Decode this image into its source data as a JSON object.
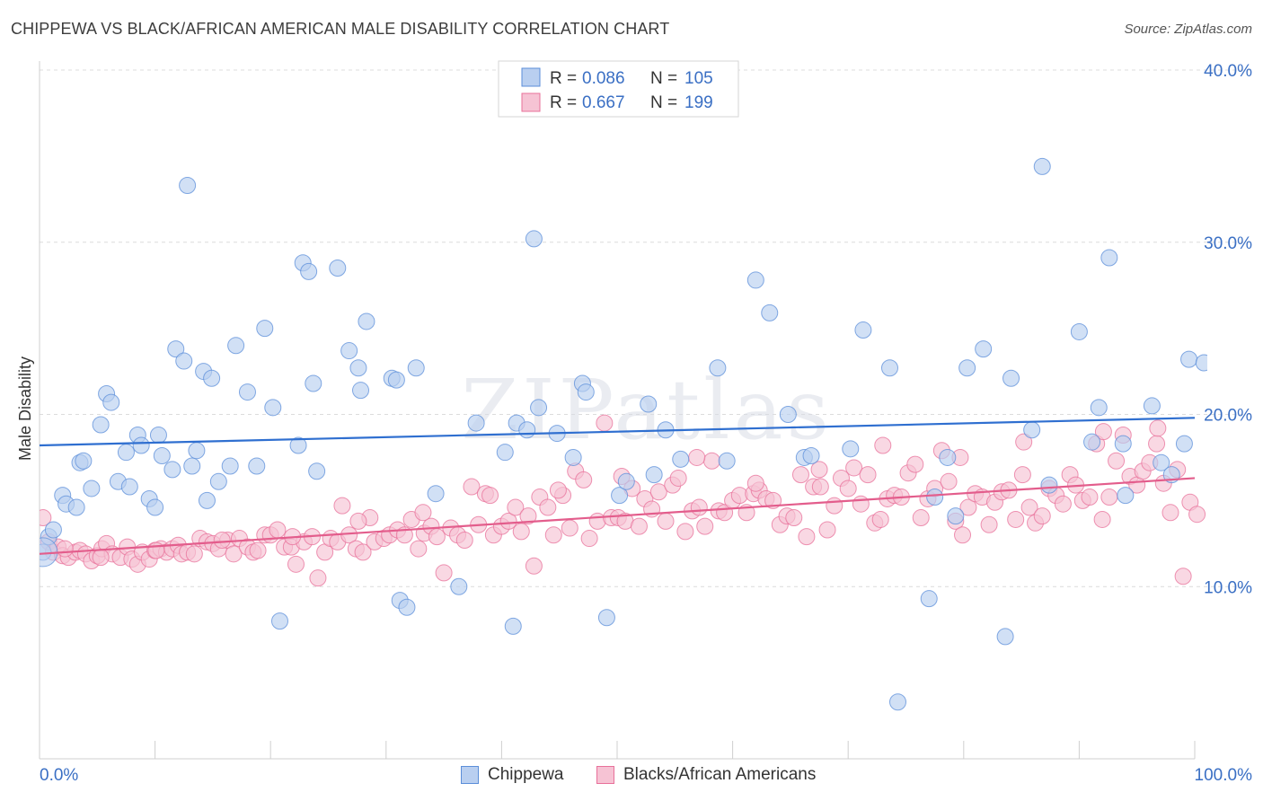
{
  "title": "CHIPPEWA VS BLACK/AFRICAN AMERICAN MALE DISABILITY CORRELATION CHART",
  "source": "Source: ZipAtlas.com",
  "watermark": "ZIPatlas",
  "x_min_label": "0.0%",
  "x_max_label": "100.0%",
  "legend_top": {
    "row1": {
      "r_label": "R =",
      "r_value": "0.086",
      "n_label": "N =",
      "n_value": "105"
    },
    "row2": {
      "r_label": "R =",
      "r_value": "0.667",
      "n_label": "N =",
      "n_value": "199"
    }
  },
  "legend_bottom": {
    "series1": "Chippewa",
    "series2": "Blacks/African Americans"
  },
  "colors": {
    "blue": "#5b8ed9",
    "blue_fill": "#b9cff0",
    "pink": "#e8709a",
    "pink_fill": "#f6c3d4",
    "axis_label": "#3a6fc4"
  },
  "chart_data": {
    "type": "scatter",
    "title": "CHIPPEWA VS BLACK/AFRICAN AMERICAN MALE DISABILITY CORRELATION CHART",
    "xlabel": "",
    "ylabel": "Male Disability",
    "xlim": [
      0,
      100
    ],
    "ylim": [
      0,
      40
    ],
    "y_ticks": [
      10,
      20,
      30,
      40
    ],
    "y_tick_labels": [
      "10.0%",
      "20.0%",
      "30.0%",
      "40.0%"
    ],
    "grid": true,
    "legend": "top-center",
    "series": [
      {
        "name": "Chippewa",
        "R": 0.086,
        "N": 105,
        "trend": [
          [
            0,
            18.2
          ],
          [
            100,
            19.8
          ]
        ],
        "points": [
          [
            0.3,
            12.0
          ],
          [
            0.8,
            12.9
          ],
          [
            1.2,
            13.3
          ],
          [
            2.0,
            15.3
          ],
          [
            2.3,
            14.8
          ],
          [
            3.2,
            14.6
          ],
          [
            3.5,
            17.2
          ],
          [
            3.8,
            17.3
          ],
          [
            4.5,
            15.7
          ],
          [
            5.3,
            19.4
          ],
          [
            5.8,
            21.2
          ],
          [
            6.2,
            20.7
          ],
          [
            6.8,
            16.1
          ],
          [
            7.5,
            17.8
          ],
          [
            7.8,
            15.8
          ],
          [
            8.5,
            18.8
          ],
          [
            8.8,
            18.2
          ],
          [
            9.5,
            15.1
          ],
          [
            10.0,
            14.6
          ],
          [
            10.3,
            18.8
          ],
          [
            10.6,
            17.6
          ],
          [
            11.5,
            16.8
          ],
          [
            11.8,
            23.8
          ],
          [
            12.5,
            23.1
          ],
          [
            12.8,
            33.3
          ],
          [
            13.2,
            17.0
          ],
          [
            13.6,
            17.9
          ],
          [
            14.2,
            22.5
          ],
          [
            14.5,
            15.0
          ],
          [
            14.9,
            22.1
          ],
          [
            15.5,
            16.1
          ],
          [
            16.5,
            17.0
          ],
          [
            17.0,
            24.0
          ],
          [
            18.0,
            21.3
          ],
          [
            18.8,
            17.0
          ],
          [
            19.5,
            25.0
          ],
          [
            20.2,
            20.4
          ],
          [
            20.8,
            8.0
          ],
          [
            22.4,
            18.2
          ],
          [
            22.8,
            28.8
          ],
          [
            23.3,
            28.3
          ],
          [
            23.7,
            21.8
          ],
          [
            24.0,
            16.7
          ],
          [
            25.8,
            28.5
          ],
          [
            26.8,
            23.7
          ],
          [
            27.6,
            22.7
          ],
          [
            27.8,
            21.4
          ],
          [
            28.3,
            25.4
          ],
          [
            30.5,
            22.1
          ],
          [
            30.9,
            22.0
          ],
          [
            31.2,
            9.2
          ],
          [
            31.8,
            8.8
          ],
          [
            32.6,
            22.7
          ],
          [
            34.3,
            15.4
          ],
          [
            36.3,
            10.0
          ],
          [
            37.8,
            19.5
          ],
          [
            40.3,
            17.8
          ],
          [
            41.0,
            7.7
          ],
          [
            41.3,
            19.5
          ],
          [
            42.2,
            19.1
          ],
          [
            42.8,
            30.2
          ],
          [
            43.2,
            20.4
          ],
          [
            44.8,
            18.9
          ],
          [
            46.2,
            17.5
          ],
          [
            47.0,
            21.8
          ],
          [
            47.3,
            21.3
          ],
          [
            49.1,
            8.2
          ],
          [
            50.2,
            15.3
          ],
          [
            50.8,
            16.1
          ],
          [
            52.7,
            20.6
          ],
          [
            53.2,
            16.5
          ],
          [
            54.2,
            19.1
          ],
          [
            55.5,
            17.4
          ],
          [
            58.7,
            22.7
          ],
          [
            59.5,
            17.3
          ],
          [
            62.0,
            27.8
          ],
          [
            63.2,
            25.9
          ],
          [
            64.8,
            20.0
          ],
          [
            66.2,
            17.5
          ],
          [
            66.8,
            17.6
          ],
          [
            70.2,
            18.0
          ],
          [
            71.3,
            24.9
          ],
          [
            73.6,
            22.7
          ],
          [
            74.3,
            3.3
          ],
          [
            77.0,
            9.3
          ],
          [
            77.5,
            15.2
          ],
          [
            78.6,
            17.5
          ],
          [
            79.3,
            14.1
          ],
          [
            80.3,
            22.7
          ],
          [
            81.7,
            23.8
          ],
          [
            83.6,
            7.1
          ],
          [
            84.1,
            22.1
          ],
          [
            85.9,
            19.1
          ],
          [
            86.8,
            34.4
          ],
          [
            87.4,
            15.9
          ],
          [
            90.0,
            24.8
          ],
          [
            91.1,
            18.4
          ],
          [
            91.7,
            20.4
          ],
          [
            92.6,
            29.1
          ],
          [
            93.8,
            18.3
          ],
          [
            94.0,
            15.3
          ],
          [
            96.3,
            20.5
          ],
          [
            97.1,
            17.2
          ],
          [
            98.0,
            16.5
          ],
          [
            99.1,
            18.3
          ],
          [
            99.5,
            23.2
          ],
          [
            100.8,
            23.0
          ]
        ]
      },
      {
        "name": "Blacks/African Americans",
        "R": 0.667,
        "N": 199,
        "trend": [
          [
            0,
            11.9
          ],
          [
            100,
            16.3
          ]
        ],
        "points": [
          [
            0.3,
            14.0
          ],
          [
            0.8,
            12.6
          ],
          [
            1.2,
            12.0
          ],
          [
            1.6,
            12.3
          ],
          [
            2.0,
            11.8
          ],
          [
            2.5,
            11.7
          ],
          [
            3.1,
            12.0
          ],
          [
            3.5,
            12.1
          ],
          [
            4.0,
            11.9
          ],
          [
            4.5,
            11.5
          ],
          [
            5.0,
            11.8
          ],
          [
            5.4,
            12.2
          ],
          [
            5.8,
            12.5
          ],
          [
            6.3,
            11.9
          ],
          [
            7.0,
            11.7
          ],
          [
            7.6,
            12.3
          ],
          [
            8.0,
            11.6
          ],
          [
            8.5,
            11.3
          ],
          [
            8.9,
            12.0
          ],
          [
            9.5,
            11.6
          ],
          [
            10.0,
            12.1
          ],
          [
            10.5,
            12.2
          ],
          [
            11.0,
            12.0
          ],
          [
            11.5,
            12.2
          ],
          [
            12.0,
            12.4
          ],
          [
            12.3,
            11.9
          ],
          [
            12.8,
            12.0
          ],
          [
            13.4,
            11.9
          ],
          [
            13.9,
            12.8
          ],
          [
            14.5,
            12.6
          ],
          [
            15.0,
            12.5
          ],
          [
            15.5,
            12.2
          ],
          [
            16.3,
            12.7
          ],
          [
            16.8,
            11.9
          ],
          [
            17.3,
            12.8
          ],
          [
            18.0,
            12.3
          ],
          [
            18.5,
            12.0
          ],
          [
            18.9,
            12.1
          ],
          [
            19.5,
            13.0
          ],
          [
            20.0,
            13.0
          ],
          [
            20.6,
            13.3
          ],
          [
            21.2,
            12.3
          ],
          [
            21.8,
            12.3
          ],
          [
            22.2,
            11.3
          ],
          [
            22.9,
            12.6
          ],
          [
            23.6,
            12.9
          ],
          [
            24.1,
            10.5
          ],
          [
            24.7,
            12.0
          ],
          [
            25.2,
            12.8
          ],
          [
            25.8,
            12.6
          ],
          [
            26.2,
            14.7
          ],
          [
            26.8,
            13.0
          ],
          [
            27.4,
            12.2
          ],
          [
            28.0,
            12.0
          ],
          [
            28.6,
            14.0
          ],
          [
            29.0,
            12.6
          ],
          [
            29.8,
            12.8
          ],
          [
            30.3,
            13.0
          ],
          [
            31.0,
            13.3
          ],
          [
            31.6,
            13.0
          ],
          [
            32.2,
            13.9
          ],
          [
            32.8,
            12.2
          ],
          [
            33.3,
            13.1
          ],
          [
            33.9,
            13.5
          ],
          [
            34.4,
            12.9
          ],
          [
            35.0,
            10.8
          ],
          [
            35.6,
            13.4
          ],
          [
            36.2,
            13.0
          ],
          [
            36.8,
            12.7
          ],
          [
            37.4,
            15.8
          ],
          [
            38.0,
            13.6
          ],
          [
            38.6,
            15.4
          ],
          [
            39.3,
            13.0
          ],
          [
            40.0,
            13.5
          ],
          [
            40.6,
            13.8
          ],
          [
            41.2,
            14.6
          ],
          [
            41.7,
            13.2
          ],
          [
            42.3,
            14.1
          ],
          [
            42.8,
            11.2
          ],
          [
            43.3,
            15.2
          ],
          [
            44.0,
            14.6
          ],
          [
            44.5,
            13.0
          ],
          [
            45.3,
            15.3
          ],
          [
            45.9,
            13.4
          ],
          [
            46.4,
            16.7
          ],
          [
            47.1,
            16.2
          ],
          [
            47.6,
            12.8
          ],
          [
            48.3,
            13.8
          ],
          [
            48.9,
            19.5
          ],
          [
            49.5,
            14.0
          ],
          [
            50.1,
            14.0
          ],
          [
            50.7,
            13.8
          ],
          [
            51.3,
            15.7
          ],
          [
            51.9,
            13.5
          ],
          [
            52.4,
            15.1
          ],
          [
            53.0,
            14.5
          ],
          [
            53.6,
            15.5
          ],
          [
            54.2,
            13.8
          ],
          [
            54.8,
            15.9
          ],
          [
            55.3,
            16.3
          ],
          [
            55.9,
            13.2
          ],
          [
            56.5,
            14.4
          ],
          [
            57.1,
            14.6
          ],
          [
            57.6,
            13.5
          ],
          [
            58.2,
            17.3
          ],
          [
            58.8,
            14.4
          ],
          [
            59.3,
            14.3
          ],
          [
            60.0,
            15.0
          ],
          [
            60.6,
            15.3
          ],
          [
            61.2,
            14.3
          ],
          [
            61.8,
            15.4
          ],
          [
            62.3,
            15.6
          ],
          [
            62.9,
            15.1
          ],
          [
            63.5,
            15.0
          ],
          [
            64.1,
            13.6
          ],
          [
            64.7,
            14.1
          ],
          [
            65.3,
            14.0
          ],
          [
            65.9,
            16.5
          ],
          [
            66.4,
            12.9
          ],
          [
            67.0,
            15.8
          ],
          [
            67.6,
            15.8
          ],
          [
            68.2,
            13.3
          ],
          [
            68.8,
            14.7
          ],
          [
            69.4,
            16.3
          ],
          [
            70.0,
            15.7
          ],
          [
            70.5,
            16.9
          ],
          [
            71.1,
            14.8
          ],
          [
            71.7,
            16.5
          ],
          [
            72.3,
            13.7
          ],
          [
            72.8,
            13.9
          ],
          [
            73.4,
            15.1
          ],
          [
            74.0,
            15.3
          ],
          [
            74.6,
            15.2
          ],
          [
            75.2,
            16.6
          ],
          [
            75.8,
            17.1
          ],
          [
            76.3,
            14.0
          ],
          [
            76.9,
            15.1
          ],
          [
            77.5,
            15.7
          ],
          [
            78.1,
            17.9
          ],
          [
            78.7,
            16.1
          ],
          [
            79.3,
            13.8
          ],
          [
            79.9,
            13.0
          ],
          [
            80.4,
            14.6
          ],
          [
            81.0,
            15.4
          ],
          [
            81.6,
            15.2
          ],
          [
            82.2,
            13.6
          ],
          [
            82.7,
            14.9
          ],
          [
            83.3,
            15.5
          ],
          [
            83.9,
            15.6
          ],
          [
            84.5,
            13.9
          ],
          [
            85.1,
            16.5
          ],
          [
            85.7,
            14.6
          ],
          [
            86.2,
            13.7
          ],
          [
            86.8,
            14.1
          ],
          [
            87.4,
            15.7
          ],
          [
            88.0,
            15.3
          ],
          [
            88.6,
            14.8
          ],
          [
            89.2,
            16.5
          ],
          [
            89.7,
            15.9
          ],
          [
            90.3,
            15.0
          ],
          [
            90.9,
            15.2
          ],
          [
            91.5,
            18.3
          ],
          [
            92.0,
            13.9
          ],
          [
            92.6,
            15.2
          ],
          [
            93.2,
            17.3
          ],
          [
            93.8,
            18.8
          ],
          [
            94.4,
            16.4
          ],
          [
            95.0,
            15.9
          ],
          [
            95.5,
            16.7
          ],
          [
            96.1,
            17.2
          ],
          [
            96.7,
            18.3
          ],
          [
            97.3,
            16.0
          ],
          [
            97.9,
            14.3
          ],
          [
            98.5,
            16.8
          ],
          [
            99.0,
            10.6
          ],
          [
            99.6,
            14.9
          ],
          [
            100.2,
            14.2
          ],
          [
            96.8,
            19.2
          ],
          [
            92.1,
            19.0
          ],
          [
            85.2,
            18.4
          ],
          [
            79.7,
            17.5
          ],
          [
            73.0,
            18.2
          ],
          [
            67.5,
            16.8
          ],
          [
            62.0,
            16.0
          ],
          [
            56.9,
            17.5
          ],
          [
            50.4,
            16.4
          ],
          [
            44.9,
            15.6
          ],
          [
            39.0,
            15.3
          ],
          [
            33.2,
            14.3
          ],
          [
            27.6,
            13.8
          ],
          [
            21.9,
            12.9
          ],
          [
            15.8,
            12.7
          ],
          [
            10.1,
            12.1
          ],
          [
            5.3,
            11.7
          ],
          [
            2.2,
            12.2
          ]
        ]
      }
    ]
  }
}
